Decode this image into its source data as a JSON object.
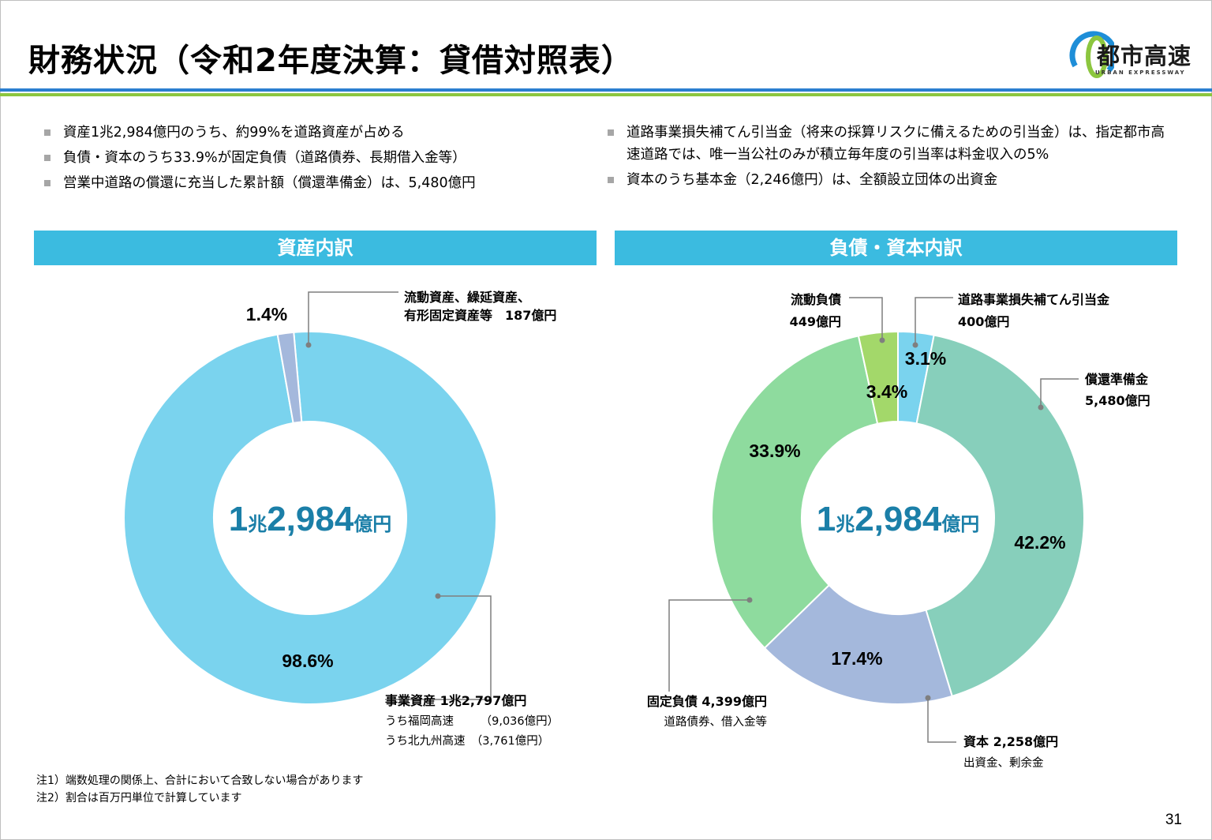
{
  "header": {
    "title": "財務状況（令和2年度決算：貸借対照表）",
    "logo_text": "都市高速",
    "logo_sub": "URBAN EXPRESSWAY"
  },
  "bullets_left": [
    "資産1兆2,984億円のうち、約99%を道路資産が占める",
    "負債・資本のうち33.9%が固定負債（道路債券、長期借入金等）",
    "営業中道路の償還に充当した累計額（償還準備金）は、5,480億円"
  ],
  "bullets_right": [
    "道路事業損失補てん引当金（将来の採算リスクに備えるための引当金）は、指定都市高速道路では、唯一当公社のみが積立毎年度の引当率は料金収入の5%",
    "資本のうち基本金（2,246億円）は、全額設立団体の出資金"
  ],
  "sections": {
    "left_title": "資産内訳",
    "right_title": "負債・資本内訳"
  },
  "chart_data": [
    {
      "type": "pie",
      "title": "資産内訳",
      "center_label": {
        "main": "1",
        "unit1": "兆",
        "amount": "2,984",
        "unit2": "億円"
      },
      "slices": [
        {
          "label": "事業資産 1兆2,797億円",
          "percent": 98.6,
          "pct_text": "98.6%",
          "color": "#7ad3ee",
          "sub": [
            "うち福岡高速　　 （9,036億円）",
            "うち北九州高速　（3,761億円）"
          ]
        },
        {
          "label_lines": [
            "流動資産、繰延資産、",
            "有形固定資産等　187億円"
          ],
          "percent": 1.4,
          "pct_text": "1.4%",
          "color": "#a4b8dc"
        }
      ]
    },
    {
      "type": "pie",
      "title": "負債・資本内訳",
      "center_label": {
        "main": "1",
        "unit1": "兆",
        "amount": "2,984",
        "unit2": "億円"
      },
      "slices": [
        {
          "label_lines": [
            "道路事業損失補てん引当金",
            "400億円"
          ],
          "percent": 3.1,
          "pct_text": "3.1%",
          "color": "#7ad3ee"
        },
        {
          "label_lines": [
            "償還準備金",
            "5,480億円"
          ],
          "percent": 42.2,
          "pct_text": "42.2%",
          "color": "#87cfbb"
        },
        {
          "label": "資本 2,258億円",
          "sub": [
            "出資金、剰余金"
          ],
          "percent": 17.4,
          "pct_text": "17.4%",
          "color": "#a4b8dc"
        },
        {
          "label": "固定負債 4,399億円",
          "sub": [
            "道路債券、借入金等"
          ],
          "percent": 33.9,
          "pct_text": "33.9%",
          "color": "#8edb9e"
        },
        {
          "label_lines": [
            "流動負債",
            "449億円"
          ],
          "percent": 3.4,
          "pct_text": "3.4%",
          "color": "#a3d86a"
        }
      ]
    }
  ],
  "notes": [
    "注1）端数処理の関係上、合計において合致しない場合があります",
    "注2）割合は百万円単位で計算しています"
  ],
  "page_number": "31"
}
